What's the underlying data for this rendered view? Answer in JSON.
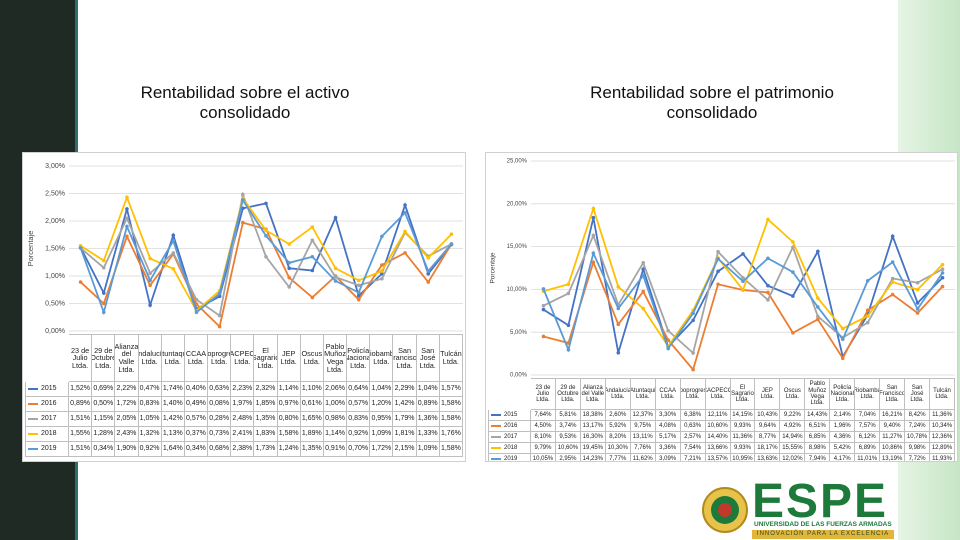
{
  "chart_data": [
    {
      "type": "line",
      "title": "Rentabilidad sobre el activo consolidado",
      "y_label": "Porcentaje",
      "categories": [
        "23 de Julio Ltda.",
        "29 de Octubre Ltda.",
        "Alianza del Valle Ltda.",
        "Andalucía Ltda.",
        "Atuntaqui Ltda.",
        "CCAA Ltda.",
        "Cooprogreso Ltda.",
        "CACPECO Ltda.",
        "El Sagrario Ltda.",
        "JEP Ltda.",
        "Oscus Ltda.",
        "Pablo Muñoz Vega Ltda.",
        "Policía Nacional Ltda.",
        "Riobamba Ltda.",
        "San Francisco Ltda.",
        "San José Ltda.",
        "Tulcán Ltda."
      ],
      "series": [
        {
          "name": "2015",
          "color": "#4472c4",
          "values": [
            1.52,
            0.69,
            2.22,
            0.47,
            1.74,
            0.4,
            0.63,
            2.23,
            2.32,
            1.14,
            1.1,
            2.06,
            0.64,
            1.04,
            2.29,
            1.04,
            1.57
          ],
          "value_labels": [
            "1,52%",
            "0,69%",
            "2,22%",
            "0,47%",
            "1,74%",
            "0,40%",
            "0,63%",
            "2,23%",
            "2,32%",
            "1,14%",
            "1,10%",
            "2,06%",
            "0,64%",
            "1,04%",
            "2,29%",
            "1,04%",
            "1,57%"
          ]
        },
        {
          "name": "2016",
          "color": "#ed7d31",
          "values": [
            0.89,
            0.5,
            1.72,
            0.83,
            1.4,
            0.49,
            0.08,
            1.97,
            1.85,
            0.97,
            0.61,
            1.0,
            0.57,
            1.2,
            1.42,
            0.89,
            1.58
          ],
          "value_labels": [
            "0,89%",
            "0,50%",
            "1,72%",
            "0,83%",
            "1,40%",
            "0,49%",
            "0,08%",
            "1,97%",
            "1,85%",
            "0,97%",
            "0,61%",
            "1,00%",
            "0,57%",
            "1,20%",
            "1,42%",
            "0,89%",
            "1,58%"
          ]
        },
        {
          "name": "2017",
          "color": "#a5a5a5",
          "values": [
            1.51,
            1.15,
            2.05,
            1.05,
            1.42,
            0.57,
            0.28,
            2.48,
            1.35,
            0.8,
            1.65,
            0.98,
            0.83,
            0.95,
            1.79,
            1.36,
            1.58
          ],
          "value_labels": [
            "1,51%",
            "1,15%",
            "2,05%",
            "1,05%",
            "1,42%",
            "0,57%",
            "0,28%",
            "2,48%",
            "1,35%",
            "0,80%",
            "1,65%",
            "0,98%",
            "0,83%",
            "0,95%",
            "1,79%",
            "1,36%",
            "1,58%"
          ]
        },
        {
          "name": "2018",
          "color": "#ffc000",
          "values": [
            1.55,
            1.28,
            2.43,
            1.32,
            1.13,
            0.37,
            0.73,
            2.41,
            1.83,
            1.58,
            1.89,
            1.14,
            0.92,
            1.09,
            1.81,
            1.33,
            1.76
          ],
          "value_labels": [
            "1,55%",
            "1,28%",
            "2,43%",
            "1,32%",
            "1,13%",
            "0,37%",
            "0,73%",
            "2,41%",
            "1,83%",
            "1,58%",
            "1,89%",
            "1,14%",
            "0,92%",
            "1,09%",
            "1,81%",
            "1,33%",
            "1,76%"
          ]
        },
        {
          "name": "2019",
          "color": "#5b9bd5",
          "values": [
            1.51,
            0.34,
            1.9,
            0.92,
            1.64,
            0.34,
            0.68,
            2.38,
            1.73,
            1.24,
            1.35,
            0.91,
            0.7,
            1.72,
            2.15,
            1.09,
            1.58
          ],
          "value_labels": [
            "1,51%",
            "0,34%",
            "1,90%",
            "0,92%",
            "1,64%",
            "0,34%",
            "0,68%",
            "2,38%",
            "1,73%",
            "1,24%",
            "1,35%",
            "0,91%",
            "0,70%",
            "1,72%",
            "2,15%",
            "1,09%",
            "1,58%"
          ]
        }
      ],
      "ylim": [
        0,
        3
      ],
      "yticks": [
        {
          "value": 0,
          "label": "0,00%"
        },
        {
          "value": 0.5,
          "label": "0,50%"
        },
        {
          "value": 1,
          "label": "1,00%"
        },
        {
          "value": 1.5,
          "label": "1,50%"
        },
        {
          "value": 2,
          "label": "2,00%"
        },
        {
          "value": 2.5,
          "label": "2,50%"
        },
        {
          "value": 3,
          "label": "3,00%"
        }
      ],
      "grid": true
    },
    {
      "type": "line",
      "title": "Rentabilidad sobre el patrimonio consolidado",
      "y_label": "Porcentaje",
      "categories": [
        "23 de Julio Ltda.",
        "29 de Octubre Ltda.",
        "Alianza del Valle Ltda.",
        "Andalucía Ltda.",
        "Atuntaqui Ltda.",
        "CCAA Ltda.",
        "Cooprogreso Ltda.",
        "CACPECO Ltda.",
        "El Sagrario Ltda.",
        "JEP Ltda.",
        "Oscus Ltda.",
        "Pablo Muñoz Vega Ltda.",
        "Policía Nacional Ltda.",
        "Riobamba Ltda.",
        "San Francisco Ltda.",
        "San José Ltda.",
        "Tulcán Ltda."
      ],
      "series": [
        {
          "name": "2015",
          "color": "#4472c4",
          "values": [
            7.64,
            5.81,
            18.38,
            2.6,
            12.37,
            3.3,
            6.38,
            12.11,
            14.15,
            10.43,
            9.22,
            14.43,
            2.14,
            7.04,
            16.21,
            8.42,
            11.36
          ],
          "value_labels": [
            "7,64%",
            "5,81%",
            "18,38%",
            "2,60%",
            "12,37%",
            "3,30%",
            "6,38%",
            "12,11%",
            "14,15%",
            "10,43%",
            "9,22%",
            "14,43%",
            "2,14%",
            "7,04%",
            "16,21%",
            "8,42%",
            "11,36%"
          ]
        },
        {
          "name": "2016",
          "color": "#ed7d31",
          "values": [
            4.5,
            3.74,
            13.17,
            5.92,
            9.75,
            4.08,
            0.63,
            10.6,
            9.93,
            9.64,
            4.92,
            6.51,
            1.96,
            7.57,
            9.4,
            7.24,
            10.34
          ],
          "value_labels": [
            "4,50%",
            "3,74%",
            "13,17%",
            "5,92%",
            "9,75%",
            "4,08%",
            "0,63%",
            "10,60%",
            "9,93%",
            "9,64%",
            "4,92%",
            "6,51%",
            "1,96%",
            "7,57%",
            "9,40%",
            "7,24%",
            "10,34%"
          ]
        },
        {
          "name": "2017",
          "color": "#a5a5a5",
          "values": [
            8.1,
            9.53,
            16.3,
            8.2,
            13.11,
            5.17,
            2.57,
            14.4,
            11.36,
            8.77,
            14.94,
            6.85,
            4.36,
            6.12,
            11.27,
            10.78,
            12.36
          ],
          "value_labels": [
            "8,10%",
            "9,53%",
            "16,30%",
            "8,20%",
            "13,11%",
            "5,17%",
            "2,57%",
            "14,40%",
            "11,36%",
            "8,77%",
            "14,94%",
            "6,85%",
            "4,36%",
            "6,12%",
            "11,27%",
            "10,78%",
            "12,36%"
          ]
        },
        {
          "name": "2018",
          "color": "#ffc000",
          "values": [
            9.79,
            10.6,
            19.45,
            10.3,
            7.76,
            3.36,
            7.54,
            13.66,
            9.93,
            18.17,
            15.55,
            8.98,
            5.42,
            6.89,
            10.86,
            9.98,
            12.89
          ],
          "value_labels": [
            "9,79%",
            "10,60%",
            "19,45%",
            "10,30%",
            "7,76%",
            "3,36%",
            "7,54%",
            "13,66%",
            "9,93%",
            "18,17%",
            "15,55%",
            "8,98%",
            "5,42%",
            "6,89%",
            "10,86%",
            "9,98%",
            "12,89%"
          ]
        },
        {
          "name": "2019",
          "color": "#5b9bd5",
          "values": [
            10.05,
            2.95,
            14.23,
            7.77,
            11.62,
            3.09,
            7.21,
            13.57,
            10.95,
            13.63,
            12.02,
            7.94,
            4.17,
            11.01,
            13.19,
            7.72,
            11.93
          ],
          "value_labels": [
            "10,05%",
            "2,95%",
            "14,23%",
            "7,77%",
            "11,62%",
            "3,09%",
            "7,21%",
            "13,57%",
            "10,95%",
            "13,63%",
            "12,02%",
            "7,94%",
            "4,17%",
            "11,01%",
            "13,19%",
            "7,72%",
            "11,93%"
          ]
        }
      ],
      "ylim": [
        0,
        25
      ],
      "yticks": [
        {
          "value": 0,
          "label": "0,00%"
        },
        {
          "value": 5,
          "label": "5,00%"
        },
        {
          "value": 10,
          "label": "10,00%"
        },
        {
          "value": 15,
          "label": "15,00%"
        },
        {
          "value": 20,
          "label": "20,00%"
        },
        {
          "value": 25,
          "label": "25,00%"
        }
      ],
      "grid": true
    }
  ],
  "logo": {
    "name": "ESPE",
    "subtitle": "UNIVERSIDAD DE LAS FUERZAS ARMADAS",
    "motto": "INNOVACIÓN PARA LA EXCELENCIA"
  }
}
